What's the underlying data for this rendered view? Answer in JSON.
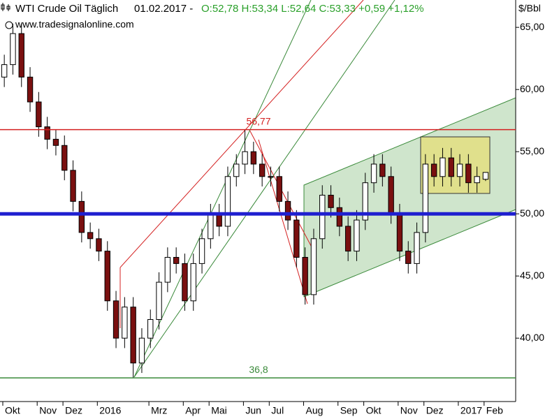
{
  "chart_data": {
    "type": "candlestick",
    "title": "WTI Crude Oil Täglich",
    "date": "01.02.2017 -",
    "quote": "O:52,78 H:53,34 L:52,64 C:53,33 +0,59 +1,12%",
    "source": "www.tradesignalonline.com",
    "y_unit": "$/Bbl",
    "categories": [
      "Okt",
      null,
      null,
      null,
      "Nov",
      null,
      null,
      "Dez",
      null,
      null,
      null,
      "2016",
      null,
      null,
      null,
      null,
      null,
      "Mrz",
      null,
      null,
      null,
      "Apr",
      null,
      null,
      "Mai",
      null,
      null,
      null,
      "Jun",
      null,
      null,
      "Jul",
      null,
      null,
      null,
      "Aug",
      null,
      null,
      null,
      "Sep",
      null,
      null,
      "Okt",
      null,
      null,
      null,
      "Nov",
      null,
      null,
      "Dez",
      null,
      null,
      null,
      "2017",
      null,
      null,
      "Feb"
    ],
    "open": [
      61,
      62,
      64.5,
      61,
      59,
      57,
      56,
      55.5,
      53.5,
      51,
      48.5,
      48,
      47,
      43,
      40,
      42.5,
      38,
      40,
      41.5,
      44.5,
      46.5,
      46,
      43,
      46,
      48,
      50,
      49,
      53,
      54,
      55,
      54,
      53,
      53,
      51,
      49.5,
      46.5,
      43.5,
      48,
      51.5,
      50.5,
      49,
      47,
      49.5,
      52.5,
      54,
      53,
      50,
      47,
      46,
      48.5,
      54,
      53,
      54.5,
      53,
      54,
      52.5,
      52.78
    ],
    "high": [
      62.8,
      65.3,
      65.3,
      61.8,
      59.8,
      57.8,
      56.8,
      56.3,
      54.3,
      51.8,
      49.3,
      48.8,
      47.8,
      43.8,
      43.3,
      43.3,
      40.8,
      42.3,
      45.3,
      47.3,
      47.3,
      46.8,
      46.8,
      48.8,
      50.8,
      50.8,
      53.8,
      54.8,
      56.77,
      55.8,
      54.8,
      53.8,
      53.8,
      51.8,
      50.3,
      47.3,
      48.8,
      52.3,
      52.3,
      51.3,
      49.8,
      50.3,
      53.3,
      54.8,
      54.8,
      53.8,
      50.8,
      47.8,
      49.3,
      54.8,
      54.8,
      55.3,
      55.3,
      54.8,
      54.8,
      53.8,
      53.34
    ],
    "low": [
      60.2,
      61.2,
      60.2,
      58.2,
      56.2,
      55.2,
      54.7,
      52.7,
      50.2,
      47.7,
      47.2,
      46.2,
      42.2,
      39.2,
      39.2,
      36.8,
      37.2,
      39.2,
      40.7,
      43.7,
      45.2,
      42.2,
      42.2,
      45.2,
      47.2,
      48.2,
      48.2,
      52.2,
      53.2,
      53.2,
      52.2,
      52.2,
      50.2,
      48.7,
      45.7,
      42.7,
      42.7,
      47.2,
      49.7,
      48.2,
      46.2,
      46.2,
      48.7,
      51.7,
      52.2,
      49.2,
      46.2,
      45.2,
      45.2,
      47.7,
      52.2,
      52.2,
      52.2,
      52.2,
      51.7,
      51.7,
      52.64
    ],
    "close": [
      62,
      64.5,
      61,
      59,
      57,
      56,
      55.5,
      53.5,
      51,
      48.5,
      48,
      47,
      43,
      40,
      42.5,
      38,
      40,
      41.5,
      44.5,
      46.5,
      46,
      43,
      46,
      48,
      50,
      49,
      53,
      54,
      55,
      54,
      53,
      53,
      51,
      49.5,
      46.5,
      43.5,
      48,
      51.5,
      50.5,
      49,
      47,
      49.5,
      52.5,
      54,
      53,
      50,
      47,
      46,
      48.5,
      54,
      53,
      54.5,
      53,
      54,
      52.5,
      53,
      53.33
    ],
    "up_color": "#ffffff",
    "down_color": "#7a1010",
    "ylim": [
      34.9,
      67.2
    ],
    "yticks": [
      {
        "value": 40,
        "label": "40,00"
      },
      {
        "value": 45,
        "label": "45,00"
      },
      {
        "value": 50,
        "label": "50,00"
      },
      {
        "value": 55,
        "label": "55,00"
      },
      {
        "value": 60,
        "label": "60,00"
      },
      {
        "value": 65,
        "label": "65,00"
      }
    ],
    "levels": [
      {
        "value": 56.77,
        "label": "56,77",
        "color": "#d42020"
      },
      {
        "value": 36.8,
        "label": "36,8",
        "color": "#3a8a3a"
      }
    ],
    "support": {
      "value": 50,
      "color": "#1f1fd0"
    }
  }
}
